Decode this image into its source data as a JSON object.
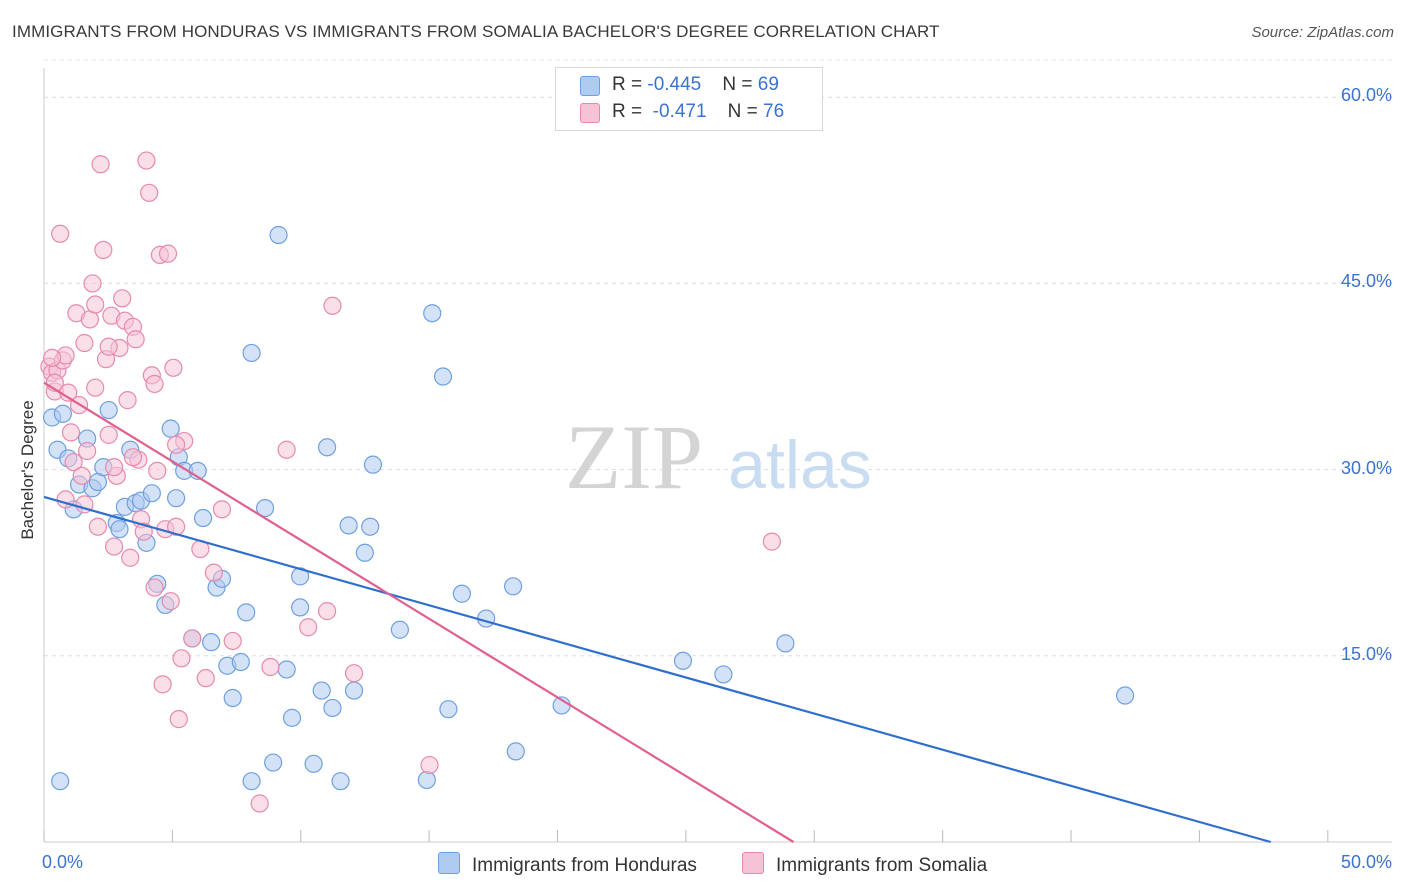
{
  "title": "IMMIGRANTS FROM HONDURAS VS IMMIGRANTS FROM SOMALIA BACHELOR'S DEGREE CORRELATION CHART",
  "source": "Source: ZipAtlas.com",
  "watermark": {
    "zip": "ZIP",
    "atlas": "atlas"
  },
  "legend": {
    "rows": [
      {
        "r_label": "R = ",
        "r_value": "-0.445",
        "n_label": "N = ",
        "n_value": "69"
      },
      {
        "r_label": "R = ",
        "r_value": "-0.471",
        "n_label": "N = ",
        "n_value": "76"
      }
    ]
  },
  "chart_data": {
    "type": "scatter",
    "title": "IMMIGRANTS FROM HONDURAS VS IMMIGRANTS FROM SOMALIA BACHELOR'S DEGREE CORRELATION CHART",
    "xlabel": "",
    "ylabel": "Bachelor's Degree",
    "xlim": [
      0,
      50
    ],
    "ylim": [
      0,
      63
    ],
    "x_tick_labels": [
      "0.0%",
      "50.0%"
    ],
    "y_ticks": [
      15,
      30,
      45,
      60
    ],
    "y_tick_labels": [
      "15.0%",
      "30.0%",
      "45.0%",
      "60.0%"
    ],
    "grid": true,
    "legend_position": "top-center",
    "series": [
      {
        "name": "Immigrants from Honduras",
        "color": "#6fa0e0",
        "fill": "#aecbf0",
        "trend": {
          "x": [
            0,
            45.5
          ],
          "y": [
            27.8,
            0
          ],
          "color": "#2f6fcc"
        },
        "points": [
          [
            0.3,
            34.2
          ],
          [
            0.5,
            31.6
          ],
          [
            0.7,
            34.5
          ],
          [
            0.9,
            30.9
          ],
          [
            1.1,
            26.8
          ],
          [
            1.3,
            28.8
          ],
          [
            1.6,
            32.5
          ],
          [
            1.8,
            28.5
          ],
          [
            2.0,
            29.0
          ],
          [
            2.2,
            30.2
          ],
          [
            2.4,
            34.8
          ],
          [
            2.7,
            25.7
          ],
          [
            2.8,
            25.2
          ],
          [
            3.0,
            27.0
          ],
          [
            3.2,
            31.6
          ],
          [
            3.4,
            27.3
          ],
          [
            3.6,
            27.5
          ],
          [
            3.8,
            24.1
          ],
          [
            4.0,
            28.1
          ],
          [
            4.2,
            20.8
          ],
          [
            4.5,
            19.1
          ],
          [
            4.7,
            33.3
          ],
          [
            4.9,
            27.7
          ],
          [
            5.0,
            31.0
          ],
          [
            5.2,
            29.9
          ],
          [
            5.5,
            16.4
          ],
          [
            5.7,
            29.9
          ],
          [
            5.9,
            26.1
          ],
          [
            6.2,
            16.1
          ],
          [
            6.4,
            20.5
          ],
          [
            6.6,
            21.2
          ],
          [
            6.8,
            14.2
          ],
          [
            7.0,
            11.6
          ],
          [
            7.3,
            14.5
          ],
          [
            7.5,
            18.5
          ],
          [
            7.7,
            39.4
          ],
          [
            8.2,
            26.9
          ],
          [
            8.5,
            6.4
          ],
          [
            8.7,
            48.9
          ],
          [
            9.0,
            13.9
          ],
          [
            9.2,
            10.0
          ],
          [
            9.5,
            21.4
          ],
          [
            9.5,
            18.9
          ],
          [
            10.0,
            6.3
          ],
          [
            10.3,
            12.2
          ],
          [
            10.5,
            31.8
          ],
          [
            10.7,
            10.8
          ],
          [
            11.3,
            25.5
          ],
          [
            11.5,
            12.2
          ],
          [
            11.9,
            23.3
          ],
          [
            12.1,
            25.4
          ],
          [
            12.2,
            30.4
          ],
          [
            13.2,
            17.1
          ],
          [
            14.2,
            5.0
          ],
          [
            14.4,
            42.6
          ],
          [
            14.8,
            37.5
          ],
          [
            15.0,
            10.7
          ],
          [
            15.5,
            20.0
          ],
          [
            16.4,
            18.0
          ],
          [
            17.4,
            20.6
          ],
          [
            17.5,
            7.3
          ],
          [
            19.2,
            11.0
          ],
          [
            23.7,
            14.6
          ],
          [
            25.2,
            13.5
          ],
          [
            27.5,
            16.0
          ],
          [
            40.1,
            11.8
          ],
          [
            0.6,
            4.9
          ],
          [
            7.7,
            4.9
          ],
          [
            11.0,
            4.9
          ]
        ]
      },
      {
        "name": "Immigrants from Somalia",
        "color": "#e68ab0",
        "fill": "#f6c2d6",
        "trend": {
          "x": [
            0,
            27.8
          ],
          "y": [
            37.0,
            0
          ],
          "color": "#e0608f"
        },
        "points": [
          [
            0.2,
            38.3
          ],
          [
            0.3,
            37.8
          ],
          [
            0.4,
            36.3
          ],
          [
            0.5,
            38.0
          ],
          [
            0.6,
            49.0
          ],
          [
            0.7,
            38.8
          ],
          [
            0.8,
            39.2
          ],
          [
            0.9,
            36.2
          ],
          [
            1.0,
            33.0
          ],
          [
            1.1,
            30.6
          ],
          [
            1.2,
            42.6
          ],
          [
            1.3,
            35.2
          ],
          [
            1.4,
            29.5
          ],
          [
            1.5,
            27.2
          ],
          [
            1.6,
            31.5
          ],
          [
            1.7,
            42.1
          ],
          [
            1.8,
            45.0
          ],
          [
            1.9,
            43.3
          ],
          [
            2.0,
            25.4
          ],
          [
            2.1,
            54.6
          ],
          [
            2.2,
            47.7
          ],
          [
            2.3,
            38.9
          ],
          [
            2.4,
            32.8
          ],
          [
            2.5,
            42.4
          ],
          [
            2.6,
            23.8
          ],
          [
            2.7,
            29.5
          ],
          [
            2.8,
            39.8
          ],
          [
            2.9,
            43.8
          ],
          [
            3.0,
            42.0
          ],
          [
            3.1,
            35.6
          ],
          [
            3.2,
            22.9
          ],
          [
            3.3,
            41.5
          ],
          [
            3.4,
            40.5
          ],
          [
            3.5,
            30.8
          ],
          [
            3.6,
            26.0
          ],
          [
            3.7,
            25.0
          ],
          [
            3.8,
            54.9
          ],
          [
            3.9,
            52.3
          ],
          [
            4.0,
            37.6
          ],
          [
            4.1,
            20.5
          ],
          [
            4.2,
            29.9
          ],
          [
            4.3,
            47.3
          ],
          [
            4.4,
            12.7
          ],
          [
            4.5,
            25.2
          ],
          [
            4.6,
            47.4
          ],
          [
            4.7,
            19.4
          ],
          [
            4.8,
            38.2
          ],
          [
            4.9,
            25.4
          ],
          [
            5.0,
            9.9
          ],
          [
            5.1,
            14.8
          ],
          [
            5.2,
            32.3
          ],
          [
            5.5,
            16.4
          ],
          [
            5.8,
            23.6
          ],
          [
            6.0,
            13.2
          ],
          [
            6.3,
            21.7
          ],
          [
            6.6,
            26.8
          ],
          [
            7.0,
            16.2
          ],
          [
            8.0,
            3.1
          ],
          [
            8.4,
            14.1
          ],
          [
            9.0,
            31.6
          ],
          [
            9.8,
            17.3
          ],
          [
            10.5,
            18.6
          ],
          [
            10.7,
            43.2
          ],
          [
            11.5,
            13.6
          ],
          [
            14.3,
            6.2
          ],
          [
            27.0,
            24.2
          ],
          [
            0.4,
            37.0
          ],
          [
            1.9,
            36.6
          ],
          [
            2.4,
            39.9
          ],
          [
            0.8,
            27.6
          ],
          [
            3.3,
            31.0
          ],
          [
            4.9,
            32.0
          ],
          [
            2.6,
            30.2
          ],
          [
            1.5,
            40.2
          ],
          [
            4.1,
            36.9
          ],
          [
            0.3,
            39.0
          ]
        ]
      }
    ]
  }
}
